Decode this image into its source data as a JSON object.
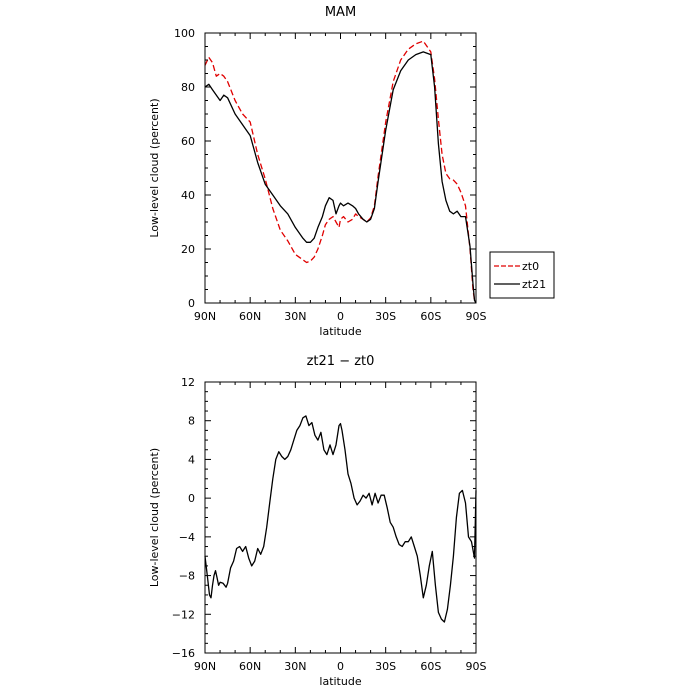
{
  "chart_data": [
    {
      "type": "line",
      "title": "MAM",
      "xlabel": "latitude",
      "ylabel": "Low-level cloud (percent)",
      "x_axis": {
        "range": [
          90,
          -90
        ],
        "ticks": [
          90,
          60,
          30,
          0,
          -30,
          -60,
          -90
        ],
        "tick_labels": [
          "90N",
          "60N",
          "30N",
          "0",
          "30S",
          "60S",
          "90S"
        ]
      },
      "y_axis": {
        "range": [
          0,
          100
        ],
        "ticks": [
          0,
          20,
          40,
          60,
          80,
          100
        ],
        "tick_labels": [
          "0",
          "20",
          "40",
          "60",
          "80",
          "100"
        ]
      },
      "legend": {
        "placement": "outside-right",
        "entries": [
          "zt0",
          "zt21"
        ]
      },
      "series": [
        {
          "name": "zt0",
          "color": "#e00000",
          "dash": true,
          "x": [
            90,
            87.5,
            85,
            82.5,
            80,
            77.5,
            75,
            70,
            65,
            60,
            55,
            50,
            45,
            40,
            35,
            30,
            25,
            22.5,
            20,
            17.5,
            15,
            12,
            10,
            7.5,
            5,
            3,
            1,
            0,
            -2,
            -5,
            -8,
            -10,
            -12,
            -15,
            -17.5,
            -20,
            -22.5,
            -25,
            -30,
            -35,
            -40,
            -45,
            -50,
            -55,
            -60,
            -62.5,
            -65,
            -67.5,
            -70,
            -72.5,
            -75,
            -77.5,
            -80,
            -83,
            -86,
            -88,
            -89,
            -90
          ],
          "y": [
            88,
            91,
            89,
            84,
            85,
            84,
            82,
            75,
            70,
            67,
            55,
            46,
            35,
            27,
            23,
            18,
            16,
            15,
            15.5,
            17,
            20,
            25,
            29,
            31,
            32,
            30,
            28,
            31,
            32,
            30,
            31,
            33,
            32,
            31,
            30,
            31.5,
            36,
            47,
            67,
            82,
            90,
            94,
            96,
            97,
            93,
            83,
            68,
            55,
            48,
            46,
            45.5,
            44,
            41,
            36,
            20,
            5,
            1,
            0
          ]
        },
        {
          "name": "zt21",
          "color": "#000000",
          "dash": false,
          "x": [
            90,
            87.5,
            85,
            82.5,
            80,
            77.5,
            75,
            70,
            65,
            60,
            55,
            50,
            45,
            40,
            35,
            30,
            25,
            22.5,
            20,
            17.5,
            15,
            12,
            10,
            7.5,
            5,
            3,
            1,
            0,
            -2,
            -5,
            -8,
            -10,
            -12,
            -15,
            -17.5,
            -20,
            -22.5,
            -25,
            -30,
            -35,
            -40,
            -45,
            -50,
            -55,
            -60,
            -62.5,
            -65,
            -67.5,
            -70,
            -72.5,
            -75,
            -77.5,
            -80,
            -83,
            -86,
            -88,
            -89,
            -90
          ],
          "y": [
            80,
            81,
            79,
            77,
            75,
            77,
            76,
            70,
            66,
            62,
            52,
            44,
            40,
            36,
            33,
            28,
            24,
            22.5,
            22.5,
            24,
            28,
            32,
            36,
            39,
            38,
            33,
            36,
            37,
            36,
            37,
            36,
            35,
            33,
            31,
            30,
            31,
            35,
            45,
            64,
            79,
            86,
            90,
            92,
            93,
            92,
            80,
            59,
            45,
            38,
            34,
            33,
            34,
            32,
            32,
            21,
            7,
            1,
            0
          ]
        }
      ]
    },
    {
      "type": "line",
      "title": "zt21 − zt0",
      "xlabel": "latitude",
      "ylabel": "Low-level cloud (percent)",
      "x_axis": {
        "range": [
          90,
          -90
        ],
        "ticks": [
          90,
          60,
          30,
          0,
          -30,
          -60,
          -90
        ],
        "tick_labels": [
          "90N",
          "60N",
          "30N",
          "0",
          "30S",
          "60S",
          "90S"
        ]
      },
      "y_axis": {
        "range": [
          -16,
          12
        ],
        "ticks": [
          -16,
          -12,
          -8,
          -4,
          0,
          4,
          8,
          12
        ],
        "tick_labels": [
          "−16",
          "−12",
          "−8",
          "−4",
          "0",
          "4",
          "8",
          "12"
        ]
      },
      "series": [
        {
          "color": "#000000",
          "dash": false,
          "x": [
            90,
            88.5,
            87,
            86,
            85,
            84,
            83,
            82,
            81,
            80,
            78,
            76,
            75,
            73,
            71,
            69,
            67,
            65,
            63,
            61,
            59,
            57,
            55,
            53,
            51,
            49,
            47,
            45,
            43,
            41,
            39,
            37,
            35,
            33,
            31,
            29,
            27,
            25,
            23,
            21,
            19,
            17,
            15,
            13,
            11,
            9,
            7,
            5,
            3,
            1,
            0,
            -1,
            -3,
            -5,
            -7,
            -9,
            -11,
            -13,
            -15,
            -17,
            -19,
            -21,
            -23,
            -25,
            -27,
            -29,
            -31,
            -33,
            -35,
            -37,
            -39,
            -41,
            -43,
            -45,
            -47,
            -49,
            -51,
            -53,
            -55,
            -57,
            -59,
            -61,
            -63,
            -65,
            -67,
            -69,
            -71,
            -73,
            -75,
            -77,
            -79,
            -81,
            -83,
            -85,
            -87,
            -89,
            -90
          ],
          "y": [
            -6,
            -8,
            -10,
            -10.3,
            -9,
            -8,
            -7.5,
            -8.2,
            -9,
            -8.7,
            -8.8,
            -9.2,
            -8.8,
            -7.2,
            -6.5,
            -5.2,
            -5.0,
            -5.5,
            -5.0,
            -6.2,
            -7.0,
            -6.5,
            -5.2,
            -5.8,
            -5.0,
            -3.0,
            -0.5,
            2.0,
            4.0,
            4.8,
            4.3,
            4.0,
            4.3,
            5.0,
            6.0,
            7.0,
            7.5,
            8.3,
            8.5,
            7.5,
            7.8,
            6.5,
            6.0,
            6.8,
            5.0,
            4.5,
            5.5,
            4.5,
            5.5,
            7.5,
            7.7,
            7.0,
            5.0,
            2.5,
            1.5,
            0.0,
            -0.7,
            -0.3,
            0.3,
            0.0,
            0.5,
            -0.7,
            0.5,
            -0.5,
            0.3,
            0.3,
            -1.0,
            -2.5,
            -3.0,
            -4.0,
            -4.8,
            -5.0,
            -4.5,
            -4.5,
            -4.0,
            -5.0,
            -6.0,
            -8.0,
            -10.3,
            -9.0,
            -7.0,
            -5.5,
            -9.0,
            -11.8,
            -12.5,
            -12.8,
            -11.5,
            -9.0,
            -6.0,
            -2.0,
            0.5,
            0.8,
            -0.5,
            -4.0,
            -4.5,
            -6.2,
            0.8
          ]
        }
      ]
    }
  ]
}
